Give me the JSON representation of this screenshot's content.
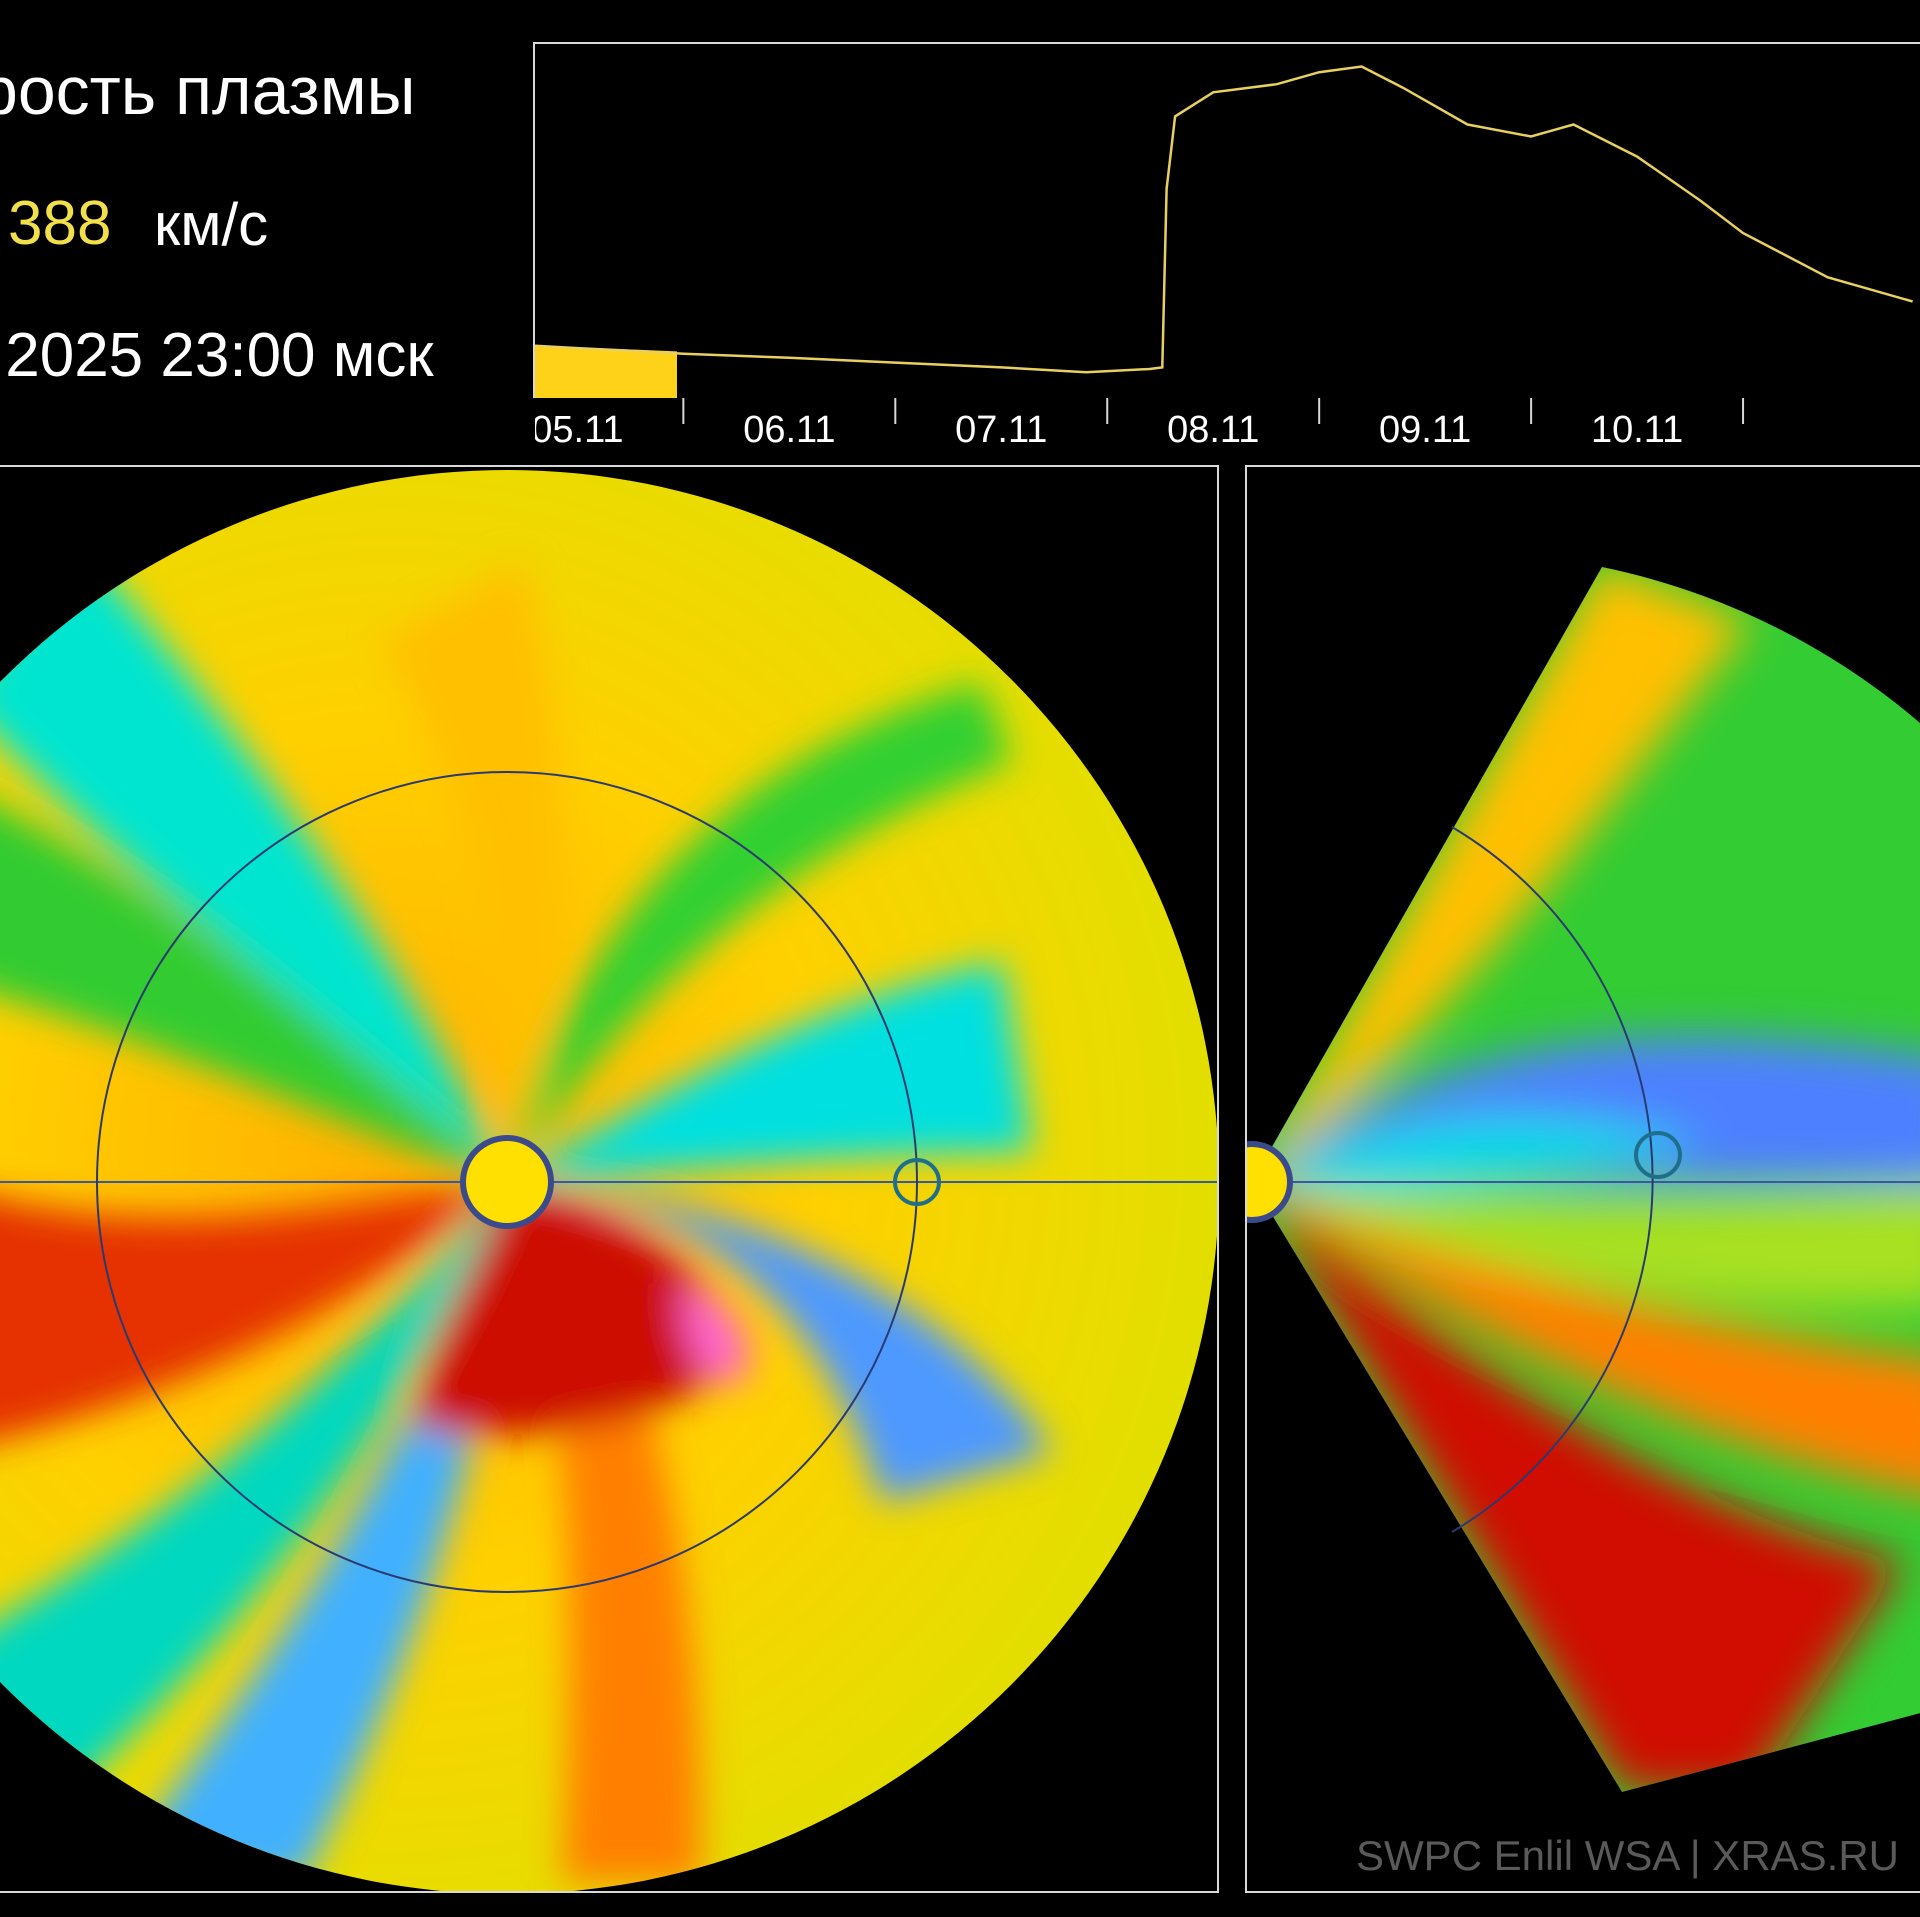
{
  "header": {
    "title": "рость плазмы",
    "speed_value": "388",
    "speed_unit": "км/с",
    "datetime": ".2025 23:00 мск"
  },
  "chart_data": {
    "type": "line",
    "title": "",
    "xlabel": "",
    "ylabel": "",
    "categories": [
      "05.11",
      "06.11",
      "07.11",
      "08.11",
      "09.11",
      "10.11"
    ],
    "x": [
      4.3,
      4.5,
      4.8,
      5.0,
      5.5,
      6.0,
      6.5,
      6.9,
      7.2,
      7.26,
      7.28,
      7.32,
      7.5,
      7.8,
      8.0,
      8.2,
      8.4,
      8.7,
      9.0,
      9.2,
      9.5,
      9.8,
      10.0,
      10.4,
      10.8
    ],
    "series": [
      {
        "values": [
          365,
          362,
          358,
          355,
          350,
          344,
          338,
          332,
          336,
          338,
          560,
          650,
          680,
          690,
          705,
          712,
          685,
          640,
          625,
          640,
          600,
          545,
          505,
          450,
          420
        ]
      }
    ],
    "ylim": [
      300,
      740
    ],
    "xlim": [
      4.3,
      11.0
    ],
    "grid": false,
    "highlight_band_x": [
      4.3,
      4.97
    ],
    "line_color": "#e8d060",
    "fill_color": "#ffd21a"
  },
  "maps": {
    "sun_color": "#ffe000",
    "earth_marker_color": "#3ab0b0"
  },
  "footer": {
    "credits": "SWPC Enlil WSA  |  XRAS.RU"
  }
}
